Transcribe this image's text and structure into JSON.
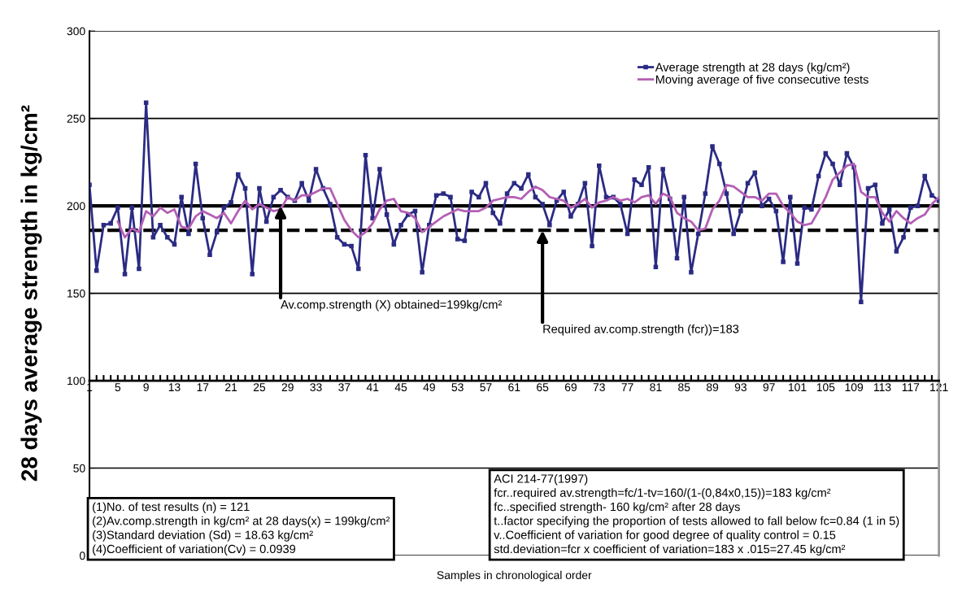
{
  "chart_data": {
    "type": "line",
    "xlabel": "Samples in chronological order",
    "ylabel": "28 days average strength in kg/cm²",
    "x": [
      1,
      2,
      3,
      4,
      5,
      6,
      7,
      8,
      9,
      10,
      11,
      12,
      13,
      14,
      15,
      16,
      17,
      18,
      19,
      20,
      21,
      22,
      23,
      24,
      25,
      26,
      27,
      28,
      29,
      30,
      31,
      32,
      33,
      34,
      35,
      36,
      37,
      38,
      39,
      40,
      41,
      42,
      43,
      44,
      45,
      46,
      47,
      48,
      49,
      50,
      51,
      52,
      53,
      54,
      55,
      56,
      57,
      58,
      59,
      60,
      61,
      62,
      63,
      64,
      65,
      66,
      67,
      68,
      69,
      70,
      71,
      72,
      73,
      74,
      75,
      76,
      77,
      78,
      79,
      80,
      81,
      82,
      83,
      84,
      85,
      86,
      87,
      88,
      89,
      90,
      91,
      92,
      93,
      94,
      95,
      96,
      97,
      98,
      99,
      100,
      101,
      102,
      103,
      104,
      105,
      106,
      107,
      108,
      109,
      110,
      111,
      112,
      113,
      114,
      115,
      116,
      117,
      118,
      119,
      120,
      121
    ],
    "series": [
      {
        "name": "Average strength at 28 days (kg/cm²)",
        "color": "#2b2b84",
        "marker": "square",
        "values": [
          212,
          163,
          189,
          190,
          199,
          161,
          199,
          164,
          259,
          182,
          189,
          182,
          178,
          205,
          184,
          224,
          193,
          172,
          185,
          199,
          202,
          218,
          210,
          161,
          210,
          191,
          205,
          209,
          205,
          203,
          213,
          203,
          221,
          210,
          201,
          182,
          178,
          177,
          164,
          229,
          193,
          221,
          195,
          178,
          189,
          195,
          197,
          162,
          189,
          206,
          207,
          205,
          181,
          180,
          208,
          205,
          213,
          196,
          190,
          207,
          213,
          210,
          218,
          205,
          201,
          189,
          203,
          208,
          194,
          201,
          213,
          177,
          223,
          205,
          205,
          201,
          184,
          215,
          212,
          222,
          165,
          221,
          204,
          170,
          205,
          162,
          184,
          207,
          234,
          224,
          207,
          184,
          197,
          213,
          219,
          200,
          204,
          197,
          168,
          205,
          167,
          199,
          198,
          217,
          230,
          224,
          212,
          230,
          222,
          145,
          210,
          212,
          190,
          198,
          174,
          182,
          199,
          200,
          217,
          206,
          203
        ]
      },
      {
        "name": "Moving average of five consecutive tests",
        "color": "#b45fb4",
        "marker": "none",
        "x": [
          5,
          6,
          7,
          8,
          9,
          10,
          11,
          12,
          13,
          14,
          15,
          16,
          17,
          18,
          19,
          20,
          21,
          22,
          23,
          24,
          25,
          26,
          27,
          28,
          29,
          30,
          31,
          32,
          33,
          34,
          35,
          36,
          37,
          38,
          39,
          40,
          41,
          42,
          43,
          44,
          45,
          46,
          47,
          48,
          49,
          50,
          51,
          52,
          53,
          54,
          55,
          56,
          57,
          58,
          59,
          60,
          61,
          62,
          63,
          64,
          65,
          66,
          67,
          68,
          69,
          70,
          71,
          72,
          73,
          74,
          75,
          76,
          77,
          78,
          79,
          80,
          81,
          82,
          83,
          84,
          85,
          86,
          87,
          88,
          89,
          90,
          91,
          92,
          93,
          94,
          95,
          96,
          97,
          98,
          99,
          100,
          101,
          102,
          103,
          104,
          105,
          106,
          107,
          108,
          109,
          110,
          111,
          112,
          113,
          114,
          115,
          116,
          117,
          118,
          119,
          120,
          121
        ],
        "values": [
          191,
          182,
          187,
          185,
          197,
          194,
          199,
          196,
          198,
          188,
          187,
          194,
          197,
          195,
          193,
          196,
          190,
          197,
          203,
          198,
          201,
          199,
          197,
          198,
          205,
          203,
          206,
          206,
          208,
          210,
          210,
          201,
          192,
          186,
          182,
          185,
          190,
          198,
          203,
          204,
          197,
          196,
          193,
          185,
          188,
          191,
          194,
          196,
          198,
          197,
          197,
          197,
          199,
          203,
          204,
          205,
          205,
          204,
          208,
          211,
          209,
          205,
          204,
          203,
          199,
          201,
          204,
          199,
          202,
          203,
          205,
          203,
          204,
          202,
          205,
          206,
          201,
          207,
          205,
          196,
          193,
          191,
          186,
          187,
          198,
          203,
          212,
          211,
          208,
          205,
          205,
          203,
          207,
          207,
          200,
          196,
          191,
          189,
          190,
          197,
          205,
          215,
          219,
          223,
          224,
          208,
          205,
          205,
          196,
          191,
          197,
          193,
          190,
          193,
          195,
          201,
          205
        ]
      }
    ],
    "xlim": [
      1,
      121
    ],
    "ylim": [
      0,
      300
    ],
    "yticks": [
      0,
      50,
      100,
      150,
      200,
      250,
      300
    ],
    "xticks": [
      1,
      5,
      9,
      13,
      17,
      21,
      25,
      29,
      33,
      37,
      41,
      45,
      49,
      53,
      57,
      61,
      65,
      69,
      73,
      77,
      81,
      85,
      89,
      93,
      97,
      101,
      105,
      109,
      113,
      117,
      121
    ],
    "grid": "y",
    "legend": "top right",
    "line_style": "solid",
    "ref_lines": [
      {
        "axis": "y",
        "value": 200,
        "color": "#000000",
        "line_style": "solid"
      },
      {
        "axis": "y",
        "value": 186,
        "color": "#000000",
        "line_style": "dashed"
      }
    ],
    "annotations": [
      {
        "text": "Av.comp.strength (X) obtained=199kg/cm²",
        "x": 28,
        "y": 200
      },
      {
        "text": "Required av.comp.strength (fcr))=183",
        "x": 65,
        "y": 186
      },
      "(1)No. of test results (n) = 121\n(2)Av.comp.strength in kg/cm² at 28 days(x) = 199kg/cm²\n(3)Standard deviation (Sd) = 18.63 kg/cm²\n(4)Coefficient of variation(Cv) = 0.0939",
      "ACI 214-77(1997)\nfcr..required av.strength=fc/1-tv=160/(1-(0,84x0,15))=183 kg/cm²\nfc..specified strength- 160 kg/cm² after 28 days\nt..factor specifying the proportion of tests allowed to fall below fc=0.84 (1 in 5)\nv..Coefficient of variation for good degree of quality control = 0.15\nstd.deviation=fcr x coefficient of variation=183 x .015=27.45 kg/cm²"
    ]
  }
}
